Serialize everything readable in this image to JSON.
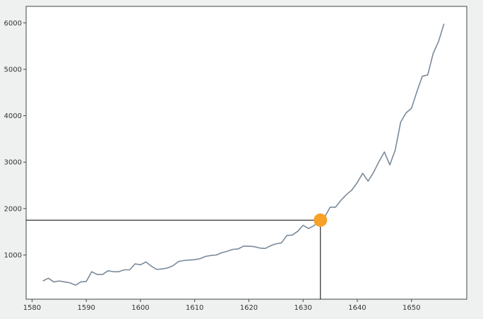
{
  "chart_data": {
    "type": "line",
    "title": "",
    "xlabel": "",
    "ylabel": "",
    "xlim": [
      1578.9,
      1660.2
    ],
    "ylim": [
      48,
      6355
    ],
    "x_ticks": [
      1580,
      1590,
      1600,
      1610,
      1620,
      1630,
      1640,
      1650
    ],
    "y_ticks": [
      1000,
      2000,
      3000,
      4000,
      5000,
      6000
    ],
    "x_tick_labels": [
      "1580",
      "1590",
      "1600",
      "1610",
      "1620",
      "1630",
      "1640",
      "1650"
    ],
    "y_tick_labels": [
      "1000",
      "2000",
      "3000",
      "4000",
      "5000",
      "6000"
    ],
    "grid": false,
    "legend": "none",
    "series": [
      {
        "color": "#7a8a9a",
        "x": [
          1582,
          1583,
          1584,
          1585,
          1586,
          1587,
          1588,
          1589,
          1590,
          1591,
          1592,
          1593,
          1594,
          1595,
          1596,
          1597,
          1598,
          1599,
          1600,
          1601,
          1602,
          1603,
          1604,
          1605,
          1606,
          1607,
          1608,
          1609,
          1610,
          1611,
          1612,
          1613,
          1614,
          1615,
          1616,
          1617,
          1618,
          1619,
          1620,
          1621,
          1622,
          1623,
          1624,
          1625,
          1626,
          1627,
          1628,
          1629,
          1630,
          1631,
          1632,
          1633,
          1634,
          1635,
          1636,
          1637,
          1638,
          1639,
          1640,
          1641,
          1642,
          1643,
          1644,
          1645,
          1646,
          1647,
          1648,
          1649,
          1650,
          1651,
          1652,
          1653,
          1654,
          1655,
          1656
        ],
        "y": [
          440,
          500,
          420,
          440,
          420,
          400,
          350,
          420,
          430,
          640,
          580,
          580,
          660,
          640,
          640,
          680,
          680,
          810,
          790,
          850,
          760,
          690,
          700,
          720,
          770,
          860,
          880,
          890,
          900,
          920,
          970,
          990,
          1000,
          1050,
          1080,
          1120,
          1130,
          1190,
          1190,
          1180,
          1150,
          1140,
          1200,
          1240,
          1260,
          1420,
          1430,
          1510,
          1640,
          1570,
          1630,
          1740,
          1820,
          2030,
          2030,
          2180,
          2300,
          2400,
          2560,
          2760,
          2590,
          2780,
          3010,
          3220,
          2940,
          3260,
          3860,
          4060,
          4160,
          4520,
          4850,
          4880,
          5340,
          5600,
          5980
        ]
      }
    ],
    "highlight_point": {
      "x": 1633.2,
      "y": 1750,
      "color": "#f7a128"
    }
  }
}
